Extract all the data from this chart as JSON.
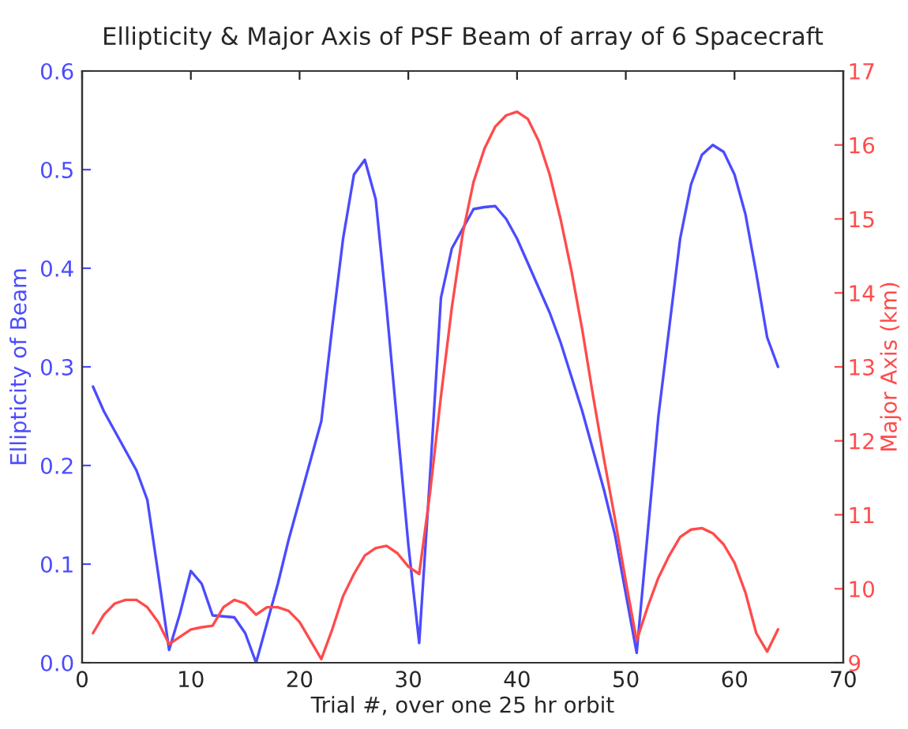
{
  "chart_data": {
    "type": "line",
    "title": "Ellipticity & Major Axis of PSF Beam of array of 6 Spacecraft",
    "xlabel": "Trial #, over one 25 hr orbit",
    "ylabel": "Ellipticity of Beam",
    "y2label": "Major Axis (km)",
    "x": [
      1,
      2,
      3,
      4,
      5,
      6,
      7,
      8,
      9,
      10,
      11,
      12,
      13,
      14,
      15,
      16,
      17,
      18,
      19,
      20,
      21,
      22,
      23,
      24,
      25,
      26,
      27,
      28,
      29,
      30,
      31,
      32,
      33,
      34,
      35,
      36,
      37,
      38,
      39,
      40,
      41,
      42,
      43,
      44,
      45,
      46,
      47,
      48,
      49,
      50,
      51,
      52,
      53,
      54,
      55,
      56,
      57,
      58,
      59,
      60,
      61,
      62,
      63,
      64
    ],
    "series": [
      {
        "color": "#4b4bff",
        "values": [
          0.28,
          0.255,
          0.235,
          0.215,
          0.195,
          0.165,
          0.09,
          0.013,
          0.05,
          0.093,
          0.08,
          0.048,
          0.047,
          0.046,
          0.03,
          0.0,
          0.04,
          0.08,
          0.125,
          0.165,
          0.205,
          0.245,
          0.34,
          0.43,
          0.495,
          0.51,
          0.47,
          0.36,
          0.24,
          0.12,
          0.02,
          0.19,
          0.37,
          0.42,
          0.44,
          0.46,
          0.462,
          0.463,
          0.45,
          0.43,
          0.405,
          0.38,
          0.355,
          0.325,
          0.29,
          0.255,
          0.215,
          0.175,
          0.13,
          0.07,
          0.01,
          0.13,
          0.25,
          0.34,
          0.43,
          0.485,
          0.515,
          0.525,
          0.518,
          0.495,
          0.455,
          0.395,
          0.33,
          0.3
        ]
      },
      {
        "color": "#ff4b4b",
        "axis": "y2",
        "values": [
          9.4,
          9.65,
          9.8,
          9.85,
          9.85,
          9.75,
          9.55,
          9.25,
          9.35,
          9.45,
          9.48,
          9.5,
          9.75,
          9.85,
          9.8,
          9.65,
          9.75,
          9.75,
          9.7,
          9.55,
          9.3,
          9.05,
          9.45,
          9.9,
          10.2,
          10.45,
          10.55,
          10.58,
          10.48,
          10.3,
          10.2,
          11.3,
          12.6,
          13.8,
          14.8,
          15.5,
          15.95,
          16.25,
          16.4,
          16.45,
          16.35,
          16.05,
          15.6,
          15.0,
          14.3,
          13.5,
          12.6,
          11.75,
          10.95,
          10.1,
          9.3,
          9.75,
          10.15,
          10.45,
          10.7,
          10.8,
          10.82,
          10.75,
          10.6,
          10.35,
          9.95,
          9.4,
          9.15,
          9.45
        ]
      }
    ],
    "xlim": [
      0,
      70
    ],
    "xticks": [
      0,
      10,
      20,
      30,
      40,
      50,
      60,
      70
    ],
    "ylim": [
      0.0,
      0.6
    ],
    "yticks": [
      {
        "value": 0.0,
        "label": "0.0"
      },
      {
        "value": 0.1,
        "label": "0.1"
      },
      {
        "value": 0.2,
        "label": "0.2"
      },
      {
        "value": 0.3,
        "label": "0.3"
      },
      {
        "value": 0.4,
        "label": "0.4"
      },
      {
        "value": 0.5,
        "label": "0.5"
      },
      {
        "value": 0.6,
        "label": "0.6"
      }
    ],
    "y2lim": [
      9,
      17
    ],
    "y2ticks": [
      9,
      10,
      11,
      12,
      13,
      14,
      15,
      16,
      17
    ],
    "grid": false,
    "legend": false,
    "marker": "none",
    "line_style": "solid"
  }
}
